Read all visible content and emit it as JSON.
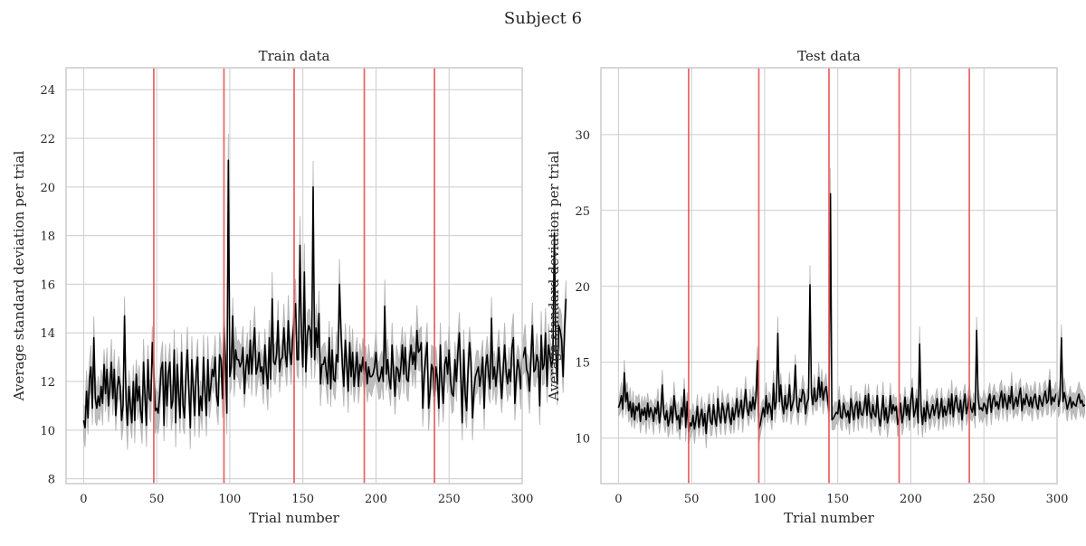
{
  "figure": {
    "title": "Subject 6"
  },
  "chart_data": [
    {
      "type": "line",
      "title": "Train data",
      "xlabel": "Trial number",
      "ylabel": "Average standard deviation per trial",
      "xlim": [
        -12,
        300
      ],
      "ylim": [
        7.8,
        24.9
      ],
      "xticks": [
        0,
        50,
        100,
        150,
        200,
        250,
        300
      ],
      "yticks": [
        8,
        10,
        12,
        14,
        16,
        18,
        20,
        22,
        24
      ],
      "grid": true,
      "vlines": [
        48,
        96,
        144,
        192,
        240
      ],
      "colors": {
        "line": "#000000",
        "band": "#b3b3b3",
        "vline": "#e8595a",
        "grid": "#cccccc"
      },
      "x_start": 0,
      "series": [
        {
          "values": [
            10.4,
            10.1,
            11.6,
            10.5,
            12.1,
            12.6,
            10.9,
            13.8,
            11.3,
            10.9,
            11.4,
            11.0,
            11.8,
            11.1,
            12.7,
            11.5,
            12.5,
            11.0,
            11.8,
            12.8,
            11.3,
            12.5,
            10.6,
            11.7,
            12.2,
            11.8,
            10.4,
            11.0,
            14.7,
            11.3,
            10.2,
            11.8,
            11.0,
            10.3,
            12.0,
            10.4,
            12.3,
            11.2,
            11.8,
            10.8,
            10.3,
            12.8,
            11.4,
            10.2,
            12.9,
            11.3,
            11.2,
            13.6,
            12.4,
            10.8,
            10.9,
            10.7,
            11.4,
            12.5,
            12.8,
            10.2,
            12.8,
            11.0,
            12.3,
            12.8,
            10.9,
            11.2,
            13.3,
            10.3,
            12.7,
            11.5,
            10.5,
            13.2,
            11.0,
            10.5,
            12.3,
            13.3,
            11.6,
            10.1,
            12.9,
            11.7,
            10.6,
            12.4,
            13.0,
            10.6,
            11.4,
            10.8,
            13.0,
            11.6,
            10.6,
            12.9,
            11.2,
            11.8,
            12.5,
            12.2,
            13.0,
            11.4,
            11.0,
            13.1,
            12.9,
            11.3,
            14.2,
            12.9,
            10.7,
            21.1,
            12.2,
            12.6,
            14.7,
            12.1,
            13.3,
            12.9,
            12.9,
            12.6,
            12.8,
            13.4,
            11.5,
            12.6,
            13.1,
            12.3,
            13.7,
            12.3,
            13.3,
            14.2,
            12.3,
            12.6,
            13.2,
            12.4,
            12.6,
            11.9,
            13.5,
            12.4,
            11.7,
            13.8,
            12.1,
            15.4,
            12.8,
            12.7,
            13.1,
            14.5,
            12.4,
            12.9,
            13.0,
            14.2,
            13.1,
            12.6,
            14.5,
            13.3,
            12.7,
            13.8,
            14.5,
            15.2,
            12.9,
            12.9,
            17.6,
            13.9,
            12.6,
            16.5,
            12.4,
            13.9,
            14.3,
            14.1,
            13.0,
            20.0,
            12.9,
            14.2,
            13.4,
            14.8,
            11.9,
            12.7,
            12.7,
            13.0,
            12.4,
            11.9,
            13.8,
            11.7,
            13.3,
            12.1,
            12.0,
            13.1,
            12.8,
            16.0,
            14.1,
            12.7,
            11.8,
            13.7,
            12.7,
            11.6,
            13.6,
            12.2,
            13.2,
            11.8,
            12.5,
            13.2,
            11.8,
            12.7,
            12.4,
            13.0,
            12.3,
            12.8,
            11.9,
            12.6,
            12.2,
            12.2,
            12.3,
            12.6,
            13.2,
            12.3,
            12.0,
            12.2,
            12.6,
            12.0,
            15.1,
            12.3,
            12.9,
            12.1,
            11.7,
            13.5,
            12.4,
            11.4,
            12.6,
            12.5,
            12.0,
            12.6,
            13.5,
            12.3,
            13.4,
            12.1,
            12.0,
            12.9,
            13.5,
            12.7,
            13.2,
            12.5,
            14.1,
            13.2,
            13.3,
            13.6,
            10.9,
            12.3,
            13.0,
            13.6,
            10.9,
            11.6,
            12.7,
            12.5,
            11.4,
            12.6,
            12.1,
            10.9,
            13.5,
            12.0,
            11.1,
            12.7,
            13.0,
            12.3,
            13.3,
            12.0,
            11.5,
            11.4,
            12.9,
            12.0,
            13.2,
            14.0,
            12.3,
            10.3,
            13.3,
            11.5,
            10.8,
            12.5,
            13.6,
            12.8,
            10.5,
            11.6,
            12.2,
            12.4,
            12.6,
            11.8,
            12.3,
            13.0,
            10.9,
            12.6,
            13.1,
            12.3,
            11.7,
            14.6,
            12.1,
            12.6,
            11.8,
            12.5,
            13.4,
            12.3,
            11.3,
            12.5,
            13.5,
            12.4,
            11.9,
            12.5,
            12.0,
            13.4,
            13.8,
            11.1,
            12.2,
            12.9,
            12.5,
            11.7,
            12.9,
            13.1,
            13.4,
            12.5,
            12.3,
            11.6,
            13.0,
            14.3,
            12.4,
            12.5,
            13.1,
            12.8,
            11.0,
            13.9,
            12.5,
            12.7,
            14.0,
            11.8,
            13.5,
            13.1,
            12.6,
            12.9,
            18.1,
            13.3,
            11.9,
            14.3,
            14.1,
            13.7,
            12.2,
            14.2,
            15.4
          ]
        }
      ]
    },
    {
      "type": "line",
      "title": "Test data",
      "xlabel": "Trial number",
      "ylabel": "Average standard deviation per trial",
      "xlim": [
        -12,
        300
      ],
      "ylim": [
        7.0,
        34.4
      ],
      "xticks": [
        0,
        50,
        100,
        150,
        200,
        250,
        300
      ],
      "yticks": [
        10,
        15,
        20,
        25,
        30
      ],
      "grid": true,
      "vlines": [
        48,
        96,
        144,
        192,
        240
      ],
      "colors": {
        "line": "#000000",
        "band": "#b3b3b3",
        "vline": "#e8595a",
        "grid": "#cccccc"
      },
      "x_start": 0,
      "series": [
        {
          "values": [
            12.0,
            12.3,
            12.8,
            11.9,
            14.3,
            12.4,
            13.0,
            11.8,
            12.4,
            11.4,
            12.3,
            11.2,
            12.1,
            11.8,
            12.3,
            11.1,
            11.9,
            11.5,
            12.0,
            11.2,
            12.3,
            11.4,
            12.0,
            11.7,
            11.1,
            12.0,
            11.6,
            12.4,
            11.0,
            11.8,
            13.5,
            11.6,
            11.2,
            11.8,
            10.8,
            11.3,
            12.1,
            11.0,
            12.8,
            11.9,
            11.2,
            11.5,
            10.6,
            12.0,
            11.4,
            13.2,
            10.7,
            12.4,
            10.4,
            11.0,
            10.8,
            11.5,
            10.6,
            11.2,
            12.1,
            10.7,
            11.4,
            11.9,
            10.8,
            11.6,
            10.3,
            11.6,
            12.2,
            11.1,
            10.9,
            12.2,
            11.3,
            10.8,
            12.6,
            11.5,
            11.0,
            12.3,
            11.8,
            11.0,
            11.8,
            12.3,
            11.4,
            10.9,
            12.0,
            11.2,
            11.8,
            12.6,
            11.4,
            11.9,
            12.5,
            11.3,
            12.2,
            13.2,
            11.9,
            11.5,
            12.4,
            11.8,
            12.7,
            11.9,
            12.6,
            15.1,
            10.6,
            10.9,
            11.5,
            12.0,
            11.4,
            12.8,
            11.6,
            12.3,
            12.0,
            11.2,
            13.6,
            11.9,
            12.4,
            16.9,
            12.4,
            13.5,
            12.2,
            11.6,
            12.8,
            11.9,
            12.3,
            13.5,
            11.8,
            12.2,
            12.6,
            14.8,
            12.1,
            11.7,
            12.6,
            12.4,
            13.2,
            12.9,
            11.6,
            12.3,
            12.6,
            20.1,
            12.9,
            12.2,
            13.3,
            12.4,
            12.6,
            14.0,
            12.7,
            13.7,
            12.5,
            13.1,
            13.4,
            12.6,
            11.8,
            26.1,
            11.2,
            11.3,
            11.5,
            11.7,
            11.6,
            12.5,
            11.4,
            11.3,
            12.3,
            11.8,
            11.4,
            11.8,
            11.0,
            12.6,
            11.9,
            11.2,
            12.1,
            12.4,
            11.3,
            12.4,
            11.6,
            11.5,
            12.0,
            12.8,
            11.5,
            12.9,
            11.7,
            11.3,
            12.2,
            11.6,
            11.4,
            12.8,
            11.4,
            10.8,
            11.7,
            12.8,
            11.2,
            12.0,
            11.0,
            11.5,
            12.8,
            11.6,
            12.2,
            11.8,
            12.1,
            10.9,
            11.4,
            12.3,
            11.0,
            11.6,
            12.7,
            11.5,
            12.2,
            11.2,
            12.5,
            13.3,
            11.4,
            11.8,
            12.6,
            11.0,
            16.2,
            11.8,
            10.9,
            12.0,
            11.1,
            12.4,
            11.7,
            11.3,
            11.8,
            12.2,
            11.5,
            12.0,
            12.6,
            11.3,
            11.8,
            12.6,
            11.4,
            12.1,
            11.5,
            11.9,
            12.6,
            11.6,
            12.9,
            11.4,
            12.3,
            12.8,
            12.0,
            11.7,
            12.5,
            11.2,
            12.2,
            12.9,
            11.6,
            12.1,
            12.8,
            12.0,
            11.7,
            12.3,
            11.5,
            17.1,
            12.6,
            11.9,
            12.0,
            11.8,
            12.3,
            12.1,
            11.6,
            12.5,
            12.9,
            11.7,
            12.5,
            12.8,
            12.1,
            12.4,
            11.9,
            12.6,
            13.1,
            12.0,
            12.9,
            12.4,
            11.9,
            12.8,
            12.3,
            13.4,
            11.9,
            12.3,
            12.7,
            12.1,
            12.8,
            13.3,
            11.8,
            12.6,
            12.2,
            12.9,
            12.5,
            12.1,
            12.7,
            12.0,
            12.6,
            12.9,
            12.2,
            11.9,
            12.8,
            12.4,
            12.1,
            12.7,
            13.1,
            12.3,
            12.5,
            13.8,
            12.2,
            12.7,
            12.4,
            12.8,
            13.0,
            12.1,
            12.6,
            16.6,
            12.4,
            13.0,
            12.5,
            11.9,
            12.3,
            12.7,
            12.0,
            12.4,
            12.2,
            12.1,
            12.6,
            12.9,
            12.3,
            12.5,
            12.1,
            12.2
          ]
        }
      ]
    }
  ]
}
